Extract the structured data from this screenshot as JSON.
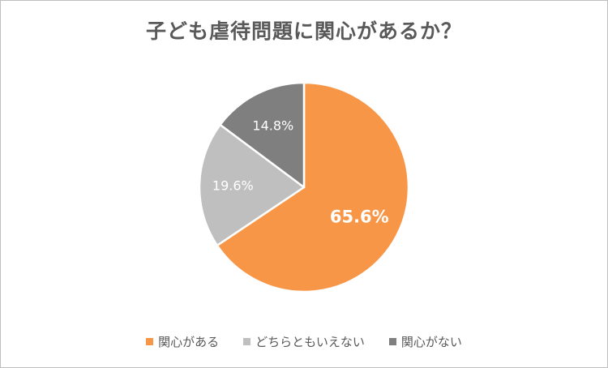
{
  "chart_data": {
    "type": "pie",
    "title": "子ども虐待問題に関心があるか？",
    "categories": [
      "関心がある",
      "どちらともいえない",
      "関心がない"
    ],
    "values": [
      65.6,
      19.6,
      14.8
    ],
    "labels": [
      "65.6%",
      "19.6%",
      "14.8%"
    ],
    "colors": [
      "#f79646",
      "#bfbfbf",
      "#7f7f7f"
    ],
    "legend_position": "bottom",
    "start_angle": "12 o'clock",
    "direction": "clockwise"
  }
}
